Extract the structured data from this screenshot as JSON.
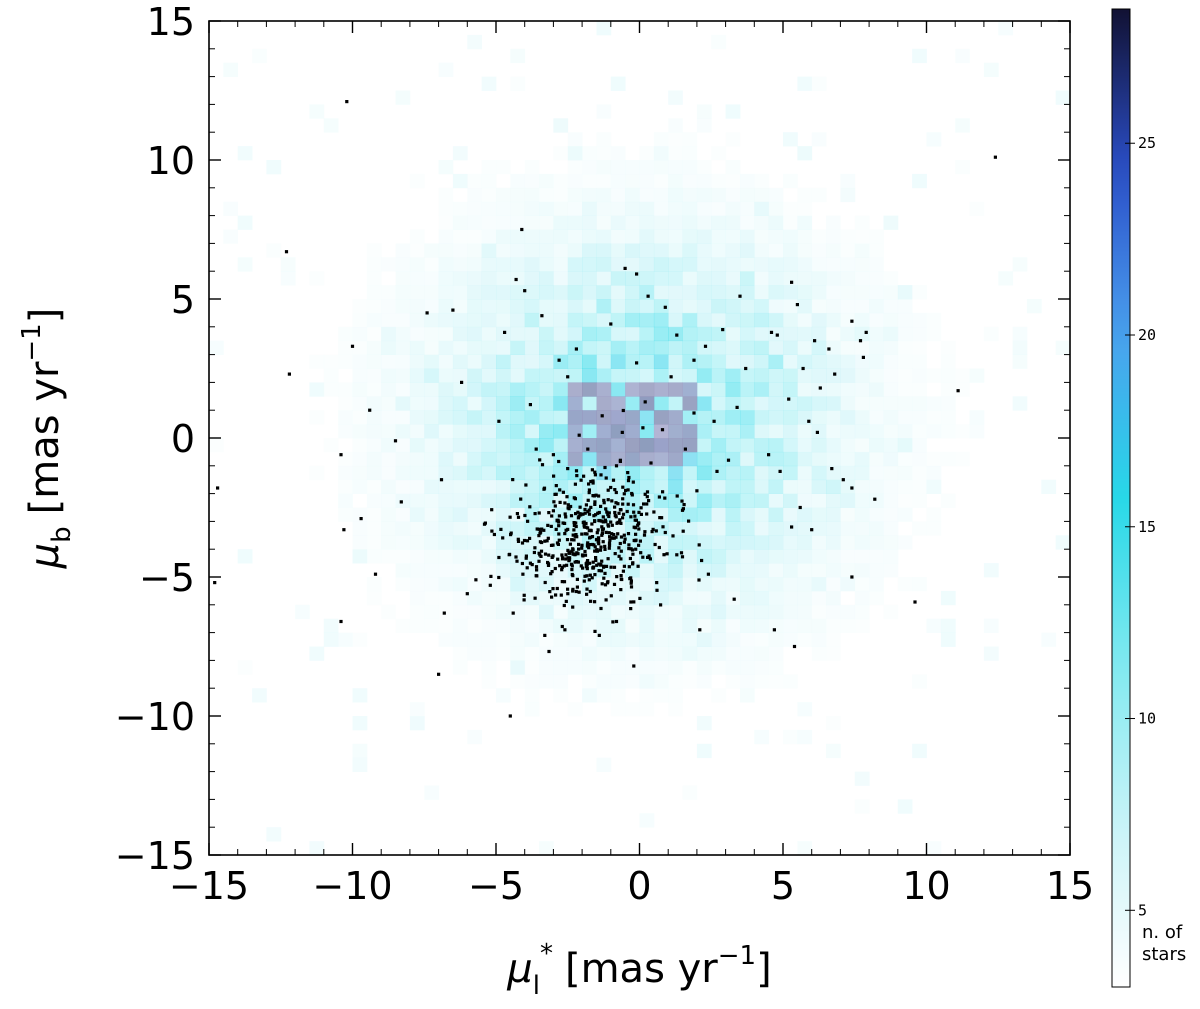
{
  "chart_data": {
    "type": "heatmap",
    "title": "",
    "xlabel": "μ*_l [mas yr⁻¹]",
    "xlabel_parts": {
      "symbol": "μ",
      "sub": "l",
      "sup": "*",
      "unit": "[mas yr",
      "unit_exp": "−1",
      "unit_close": "]"
    },
    "ylabel": "μ_b [mas yr⁻¹]",
    "ylabel_parts": {
      "symbol": "μ",
      "sub": "b",
      "unit": "[mas yr",
      "unit_exp": "−1",
      "unit_close": "]"
    },
    "xlim": [
      -15,
      15
    ],
    "ylim": [
      -15,
      15
    ],
    "xticks": [
      -15,
      -10,
      -5,
      0,
      5,
      10,
      15
    ],
    "yticks": [
      -15,
      -10,
      -5,
      0,
      5,
      10,
      15
    ],
    "xtick_labels": [
      "−15",
      "−10",
      "−5",
      "0",
      "5",
      "10",
      "15"
    ],
    "ytick_labels": [
      "−15",
      "−10",
      "−5",
      "0",
      "5",
      "10",
      "15"
    ],
    "grid": false,
    "heatmap": {
      "bin_size": 0.5,
      "density_center": [
        0,
        0.5
      ],
      "density_sigma": [
        4.5,
        4.2
      ],
      "peak_count": 28,
      "colors": [
        "#ffffff",
        "#c8f3f7",
        "#7fe9f0",
        "#28d8e8",
        "#4aa0ee",
        "#2b4fc9",
        "#111133"
      ]
    },
    "colorbar": {
      "range": [
        3,
        28.5
      ],
      "ticks": [
        5,
        10,
        15,
        20,
        25
      ],
      "tick_labels": [
        "5",
        "10",
        "15",
        "20",
        "25"
      ],
      "title_lines": [
        "n. of",
        "stars"
      ]
    },
    "overlay_scatter": {
      "color": "#000000",
      "cluster": {
        "center": [
          -1.7,
          -3.6
        ],
        "sigma": [
          1.3,
          1.2
        ],
        "count": 520
      },
      "points": [
        [
          -10.2,
          12.1
        ],
        [
          12.4,
          10.1
        ],
        [
          -12.3,
          6.7
        ],
        [
          -4.1,
          7.5
        ],
        [
          -4.3,
          5.7
        ],
        [
          -4.0,
          5.3
        ],
        [
          -7.4,
          4.5
        ],
        [
          -6.5,
          4.6
        ],
        [
          -10.0,
          3.3
        ],
        [
          -12.2,
          2.3
        ],
        [
          -6.2,
          2.0
        ],
        [
          -9.4,
          1.0
        ],
        [
          -8.5,
          -0.1
        ],
        [
          -10.4,
          -0.6
        ],
        [
          -14.7,
          -1.8
        ],
        [
          -8.3,
          -2.3
        ],
        [
          -9.7,
          -2.9
        ],
        [
          -10.3,
          -3.3
        ],
        [
          -9.2,
          -4.9
        ],
        [
          -14.8,
          -5.2
        ],
        [
          -10.4,
          -6.6
        ],
        [
          -7.0,
          -8.5
        ],
        [
          -4.5,
          -10.0
        ],
        [
          -6.8,
          -6.3
        ],
        [
          -6.0,
          -5.6
        ],
        [
          -5.2,
          -5.3
        ],
        [
          -4.7,
          3.8
        ],
        [
          -4.9,
          0.6
        ],
        [
          -3.8,
          1.2
        ],
        [
          -2.8,
          2.8
        ],
        [
          -2.5,
          2.2
        ],
        [
          -2.2,
          3.2
        ],
        [
          -1.0,
          4.1
        ],
        [
          -0.5,
          6.1
        ],
        [
          -0.1,
          5.9
        ],
        [
          0.3,
          5.1
        ],
        [
          0.9,
          4.7
        ],
        [
          1.3,
          3.7
        ],
        [
          2.3,
          3.3
        ],
        [
          2.9,
          3.9
        ],
        [
          3.5,
          5.1
        ],
        [
          4.6,
          3.8
        ],
        [
          4.8,
          3.7
        ],
        [
          5.3,
          5.6
        ],
        [
          5.5,
          4.8
        ],
        [
          5.7,
          2.5
        ],
        [
          6.1,
          3.5
        ],
        [
          6.6,
          3.2
        ],
        [
          7.4,
          4.2
        ],
        [
          7.7,
          3.5
        ],
        [
          7.9,
          3.8
        ],
        [
          7.8,
          2.9
        ],
        [
          6.8,
          2.3
        ],
        [
          6.3,
          1.8
        ],
        [
          5.2,
          1.4
        ],
        [
          5.9,
          0.6
        ],
        [
          6.2,
          0.2
        ],
        [
          4.5,
          -0.6
        ],
        [
          4.9,
          -1.2
        ],
        [
          6.7,
          -1.1
        ],
        [
          7.1,
          -1.5
        ],
        [
          7.4,
          -1.8
        ],
        [
          8.2,
          -2.2
        ],
        [
          5.6,
          -2.5
        ],
        [
          5.3,
          -3.2
        ],
        [
          6.0,
          -3.3
        ],
        [
          7.4,
          -5.0
        ],
        [
          9.6,
          -5.9
        ],
        [
          11.1,
          1.7
        ],
        [
          4.7,
          -6.9
        ],
        [
          5.4,
          -7.5
        ],
        [
          2.1,
          -6.9
        ],
        [
          -0.2,
          -8.2
        ],
        [
          2.6,
          0.6
        ],
        [
          3.1,
          -0.8
        ],
        [
          3.4,
          1.1
        ],
        [
          2.7,
          -1.2
        ],
        [
          1.6,
          -0.4
        ],
        [
          1.9,
          0.9
        ],
        [
          2.0,
          -1.9
        ],
        [
          0.8,
          0.3
        ],
        [
          0.4,
          -0.9
        ],
        [
          -0.6,
          0.2
        ],
        [
          -1.3,
          0.8
        ],
        [
          -1.8,
          -0.4
        ],
        [
          -0.8,
          -1.0
        ],
        [
          0.2,
          1.3
        ],
        [
          1.1,
          2.2
        ],
        [
          -2.1,
          0.1
        ],
        [
          -3.6,
          -0.4
        ],
        [
          -3.0,
          -0.6
        ],
        [
          -2.5,
          -1.1
        ],
        [
          1.5,
          -2.6
        ],
        [
          0.9,
          -3.4
        ],
        [
          1.3,
          -4.2
        ],
        [
          0.6,
          -5.2
        ],
        [
          -0.3,
          -5.9
        ],
        [
          -0.8,
          -6.6
        ],
        [
          -1.4,
          -7.1
        ],
        [
          -2.6,
          -6.9
        ],
        [
          -3.3,
          -7.1
        ],
        [
          -4.4,
          -6.3
        ],
        [
          -5.7,
          -5.1
        ],
        [
          -4.9,
          -4.3
        ],
        [
          -5.4,
          -3.1
        ],
        [
          -3.4,
          4.4
        ],
        [
          -0.1,
          2.7
        ],
        [
          1.9,
          2.8
        ],
        [
          3.7,
          2.5
        ],
        [
          2.4,
          -4.9
        ],
        [
          3.3,
          -5.8
        ],
        [
          -6.9,
          -1.5
        ]
      ]
    }
  }
}
